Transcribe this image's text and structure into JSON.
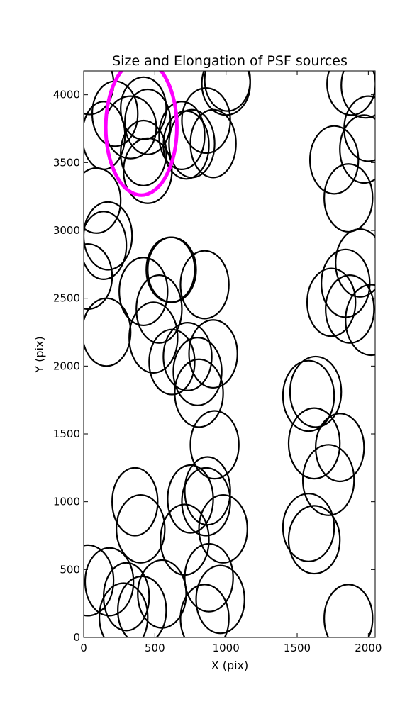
{
  "chart_data": {
    "type": "scatter",
    "title": "Size and Elongation of PSF sources",
    "xlabel": "X (pix)",
    "ylabel": "Y (pix)",
    "xlim": [
      0,
      2048
    ],
    "ylim": [
      0,
      4176
    ],
    "xticks": [
      0,
      500,
      1000,
      1500,
      2000
    ],
    "yticks": [
      0,
      500,
      1000,
      1500,
      2000,
      2500,
      3000,
      3500,
      4000
    ],
    "grid": false,
    "legend": "none",
    "colors": {
      "ellipse": "#000000",
      "highlight": "#ff00ff",
      "axes": "#000000"
    },
    "sources": [
      {
        "x": 40,
        "y": 4085,
        "w": 170,
        "h": 230
      },
      {
        "x": 220,
        "y": 3860,
        "w": 160,
        "h": 240
      },
      {
        "x": 140,
        "y": 3700,
        "w": 150,
        "h": 250
      },
      {
        "x": 420,
        "y": 3900,
        "w": 160,
        "h": 230
      },
      {
        "x": 450,
        "y": 3800,
        "w": 160,
        "h": 240
      },
      {
        "x": 330,
        "y": 3760,
        "w": 180,
        "h": 230
      },
      {
        "x": 420,
        "y": 3570,
        "w": 160,
        "h": 240
      },
      {
        "x": 450,
        "y": 3440,
        "w": 170,
        "h": 240
      },
      {
        "x": 690,
        "y": 3700,
        "w": 160,
        "h": 250
      },
      {
        "x": 860,
        "y": 3810,
        "w": 170,
        "h": 240
      },
      {
        "x": 720,
        "y": 3630,
        "w": 160,
        "h": 250
      },
      {
        "x": 760,
        "y": 3640,
        "w": 160,
        "h": 250
      },
      {
        "x": 910,
        "y": 3640,
        "w": 160,
        "h": 250
      },
      {
        "x": 1000,
        "y": 4080,
        "w": 170,
        "h": 230
      },
      {
        "x": 1010,
        "y": 4110,
        "w": 160,
        "h": 230
      },
      {
        "x": 1880,
        "y": 4080,
        "w": 170,
        "h": 230
      },
      {
        "x": 1980,
        "y": 4070,
        "w": 170,
        "h": 240
      },
      {
        "x": 2000,
        "y": 3750,
        "w": 170,
        "h": 240
      },
      {
        "x": 1970,
        "y": 3600,
        "w": 170,
        "h": 250
      },
      {
        "x": 1760,
        "y": 3520,
        "w": 170,
        "h": 250
      },
      {
        "x": 1860,
        "y": 3240,
        "w": 170,
        "h": 250
      },
      {
        "x": 90,
        "y": 3220,
        "w": 170,
        "h": 240
      },
      {
        "x": 170,
        "y": 2960,
        "w": 170,
        "h": 250
      },
      {
        "x": 140,
        "y": 2890,
        "w": 160,
        "h": 250
      },
      {
        "x": 30,
        "y": 2660,
        "w": 170,
        "h": 240
      },
      {
        "x": 610,
        "y": 2710,
        "w": 170,
        "h": 240
      },
      {
        "x": 620,
        "y": 2710,
        "w": 170,
        "h": 240
      },
      {
        "x": 850,
        "y": 2600,
        "w": 170,
        "h": 250
      },
      {
        "x": 420,
        "y": 2550,
        "w": 170,
        "h": 250
      },
      {
        "x": 530,
        "y": 2420,
        "w": 160,
        "h": 250
      },
      {
        "x": 160,
        "y": 2250,
        "w": 170,
        "h": 250
      },
      {
        "x": 490,
        "y": 2210,
        "w": 170,
        "h": 260
      },
      {
        "x": 620,
        "y": 2030,
        "w": 160,
        "h": 240
      },
      {
        "x": 730,
        "y": 2070,
        "w": 170,
        "h": 250
      },
      {
        "x": 910,
        "y": 2090,
        "w": 170,
        "h": 250
      },
      {
        "x": 800,
        "y": 1960,
        "w": 170,
        "h": 250
      },
      {
        "x": 810,
        "y": 1800,
        "w": 170,
        "h": 250
      },
      {
        "x": 920,
        "y": 1420,
        "w": 170,
        "h": 250
      },
      {
        "x": 1580,
        "y": 1780,
        "w": 180,
        "h": 260
      },
      {
        "x": 1630,
        "y": 1810,
        "w": 180,
        "h": 260
      },
      {
        "x": 1620,
        "y": 1430,
        "w": 180,
        "h": 260
      },
      {
        "x": 1800,
        "y": 1400,
        "w": 170,
        "h": 250
      },
      {
        "x": 1720,
        "y": 1160,
        "w": 180,
        "h": 260
      },
      {
        "x": 1740,
        "y": 2470,
        "w": 170,
        "h": 250
      },
      {
        "x": 1840,
        "y": 2610,
        "w": 170,
        "h": 250
      },
      {
        "x": 1940,
        "y": 2760,
        "w": 170,
        "h": 250
      },
      {
        "x": 1870,
        "y": 2420,
        "w": 170,
        "h": 250
      },
      {
        "x": 2020,
        "y": 2340,
        "w": 180,
        "h": 260
      },
      {
        "x": 360,
        "y": 1000,
        "w": 160,
        "h": 250
      },
      {
        "x": 400,
        "y": 800,
        "w": 170,
        "h": 250
      },
      {
        "x": 710,
        "y": 720,
        "w": 170,
        "h": 260
      },
      {
        "x": 750,
        "y": 1020,
        "w": 160,
        "h": 250
      },
      {
        "x": 870,
        "y": 1080,
        "w": 160,
        "h": 250
      },
      {
        "x": 860,
        "y": 1000,
        "w": 170,
        "h": 250
      },
      {
        "x": 980,
        "y": 800,
        "w": 170,
        "h": 250
      },
      {
        "x": 1580,
        "y": 810,
        "w": 180,
        "h": 250
      },
      {
        "x": 1620,
        "y": 720,
        "w": 180,
        "h": 250
      },
      {
        "x": 30,
        "y": 420,
        "w": 180,
        "h": 260
      },
      {
        "x": 180,
        "y": 410,
        "w": 170,
        "h": 250
      },
      {
        "x": 300,
        "y": 300,
        "w": 160,
        "h": 250
      },
      {
        "x": 280,
        "y": 150,
        "w": 170,
        "h": 250
      },
      {
        "x": 410,
        "y": 200,
        "w": 170,
        "h": 250
      },
      {
        "x": 550,
        "y": 320,
        "w": 170,
        "h": 250
      },
      {
        "x": 880,
        "y": 440,
        "w": 170,
        "h": 250
      },
      {
        "x": 960,
        "y": 280,
        "w": 170,
        "h": 250
      },
      {
        "x": 850,
        "y": 140,
        "w": 170,
        "h": 250
      },
      {
        "x": 1860,
        "y": 140,
        "w": 170,
        "h": 250
      }
    ],
    "highlight": {
      "x": 405,
      "y": 3760,
      "w": 250,
      "h": 500
    }
  }
}
